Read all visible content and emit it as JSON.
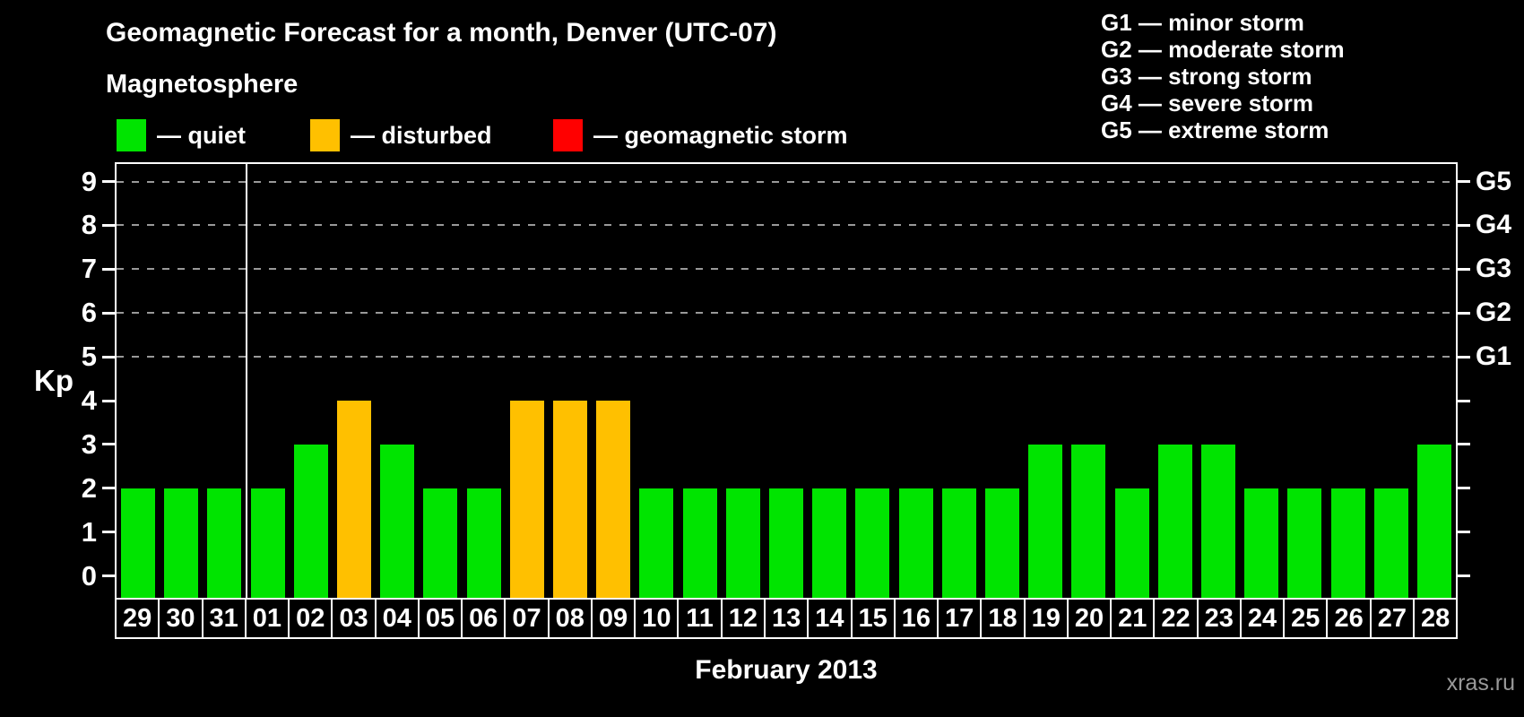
{
  "title": "Geomagnetic Forecast for a month, Denver (UTC-07)",
  "subtitle": "Magnetosphere",
  "legend": {
    "items": [
      {
        "name": "quiet",
        "label": "— quiet",
        "color": "#00e400"
      },
      {
        "name": "disturbed",
        "label": "— disturbed",
        "color": "#ffc000"
      },
      {
        "name": "storm",
        "label": "— geomagnetic storm",
        "color": "#ff0000"
      }
    ]
  },
  "g_legend": {
    "items": [
      "G1 — minor storm",
      "G2 — moderate storm",
      "G3 — strong storm",
      "G4 — severe storm",
      "G5 — extreme storm"
    ]
  },
  "watermark": "xras.ru",
  "chart_data": {
    "type": "bar",
    "title": "Geomagnetic Forecast for a month, Denver (UTC-07)",
    "ylabel": "Kp",
    "xlabel": "February 2013",
    "categories": [
      "29",
      "30",
      "31",
      "01",
      "02",
      "03",
      "04",
      "05",
      "06",
      "07",
      "08",
      "09",
      "10",
      "11",
      "12",
      "13",
      "14",
      "15",
      "16",
      "17",
      "18",
      "19",
      "20",
      "21",
      "22",
      "23",
      "24",
      "25",
      "26",
      "27",
      "28"
    ],
    "values": [
      2,
      2,
      2,
      2,
      3,
      4,
      3,
      2,
      2,
      4,
      4,
      4,
      2,
      2,
      2,
      2,
      2,
      2,
      2,
      2,
      2,
      3,
      3,
      2,
      3,
      3,
      2,
      2,
      2,
      2,
      3
    ],
    "statuses": [
      "quiet",
      "quiet",
      "quiet",
      "quiet",
      "quiet",
      "disturbed",
      "quiet",
      "quiet",
      "quiet",
      "disturbed",
      "disturbed",
      "disturbed",
      "quiet",
      "quiet",
      "quiet",
      "quiet",
      "quiet",
      "quiet",
      "quiet",
      "quiet",
      "quiet",
      "quiet",
      "quiet",
      "quiet",
      "quiet",
      "quiet",
      "quiet",
      "quiet",
      "quiet",
      "quiet",
      "quiet"
    ],
    "status_colors": {
      "quiet": "#00e400",
      "disturbed": "#ffc000",
      "storm": "#ff0000"
    },
    "y_ticks": [
      "0",
      "1",
      "2",
      "3",
      "4",
      "5",
      "6",
      "7",
      "8",
      "9"
    ],
    "ylim": [
      -0.5,
      9.4
    ],
    "gridlines_kp": [
      5,
      6,
      7,
      8,
      9
    ],
    "grid_color": "#999999",
    "axis_color": "#ffffff",
    "background_color": "#000000",
    "right_axis_labels": [
      {
        "label": "G1",
        "kp": 5
      },
      {
        "label": "G2",
        "kp": 6
      },
      {
        "label": "G3",
        "kp": 7
      },
      {
        "label": "G4",
        "kp": 8
      },
      {
        "label": "G5",
        "kp": 9
      }
    ],
    "month_separator_after_index": 2,
    "legend_position": "top"
  }
}
